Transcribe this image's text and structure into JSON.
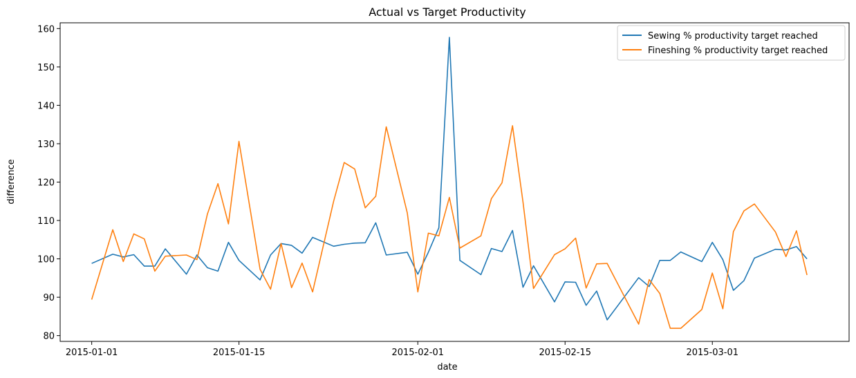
{
  "chart_data": {
    "type": "line",
    "title": "Actual vs Target Productivity",
    "xlabel": "date",
    "ylabel": "difference",
    "x_tick_labels": [
      "2015-01-01",
      "2015-01-15",
      "2015-02-01",
      "2015-02-15",
      "2015-03-01"
    ],
    "x_ticks": [
      "2015-01-01",
      "2015-01-15",
      "2015-02-01",
      "2015-02-15",
      "2015-03-01"
    ],
    "y_ticks": [
      80,
      90,
      100,
      110,
      120,
      130,
      140,
      150,
      160
    ],
    "xlim": [
      "2014-12-29",
      "2015-03-14"
    ],
    "ylim": [
      78.5,
      161.5
    ],
    "grid": false,
    "legend_position": "top-right",
    "x": [
      "2015-01-01",
      "2015-01-03",
      "2015-01-04",
      "2015-01-05",
      "2015-01-06",
      "2015-01-07",
      "2015-01-08",
      "2015-01-10",
      "2015-01-11",
      "2015-01-12",
      "2015-01-13",
      "2015-01-14",
      "2015-01-15",
      "2015-01-17",
      "2015-01-18",
      "2015-01-19",
      "2015-01-20",
      "2015-01-21",
      "2015-01-22",
      "2015-01-24",
      "2015-01-25",
      "2015-01-26",
      "2015-01-27",
      "2015-01-28",
      "2015-01-29",
      "2015-01-31",
      "2015-02-01",
      "2015-02-02",
      "2015-02-03",
      "2015-02-04",
      "2015-02-05",
      "2015-02-07",
      "2015-02-08",
      "2015-02-09",
      "2015-02-10",
      "2015-02-11",
      "2015-02-12",
      "2015-02-14",
      "2015-02-15",
      "2015-02-16",
      "2015-02-17",
      "2015-02-18",
      "2015-02-19",
      "2015-02-22",
      "2015-02-23",
      "2015-02-24",
      "2015-02-25",
      "2015-02-26",
      "2015-02-28",
      "2015-03-01",
      "2015-03-02",
      "2015-03-03",
      "2015-03-04",
      "2015-03-05",
      "2015-03-07",
      "2015-03-08",
      "2015-03-09",
      "2015-03-10",
      "2015-03-11"
    ],
    "series": [
      {
        "name": "Sewing % productivity target reached",
        "color": "#1f77b4",
        "values": [
          98.8,
          101.2,
          100.5,
          101.1,
          98.1,
          98.1,
          102.6,
          96.0,
          101.0,
          97.7,
          96.8,
          104.3,
          99.6,
          94.5,
          101.0,
          104.0,
          103.5,
          101.5,
          105.6,
          103.3,
          103.8,
          104.1,
          104.2,
          109.4,
          101.0,
          101.7,
          96.0,
          101.7,
          108.1,
          157.7,
          99.6,
          95.9,
          102.7,
          101.9,
          107.4,
          92.6,
          98.2,
          88.8,
          94.0,
          93.9,
          87.9,
          91.6,
          84.1,
          95.1,
          92.8,
          99.6,
          99.6,
          101.8,
          99.3,
          104.3,
          99.8,
          91.8,
          94.3,
          100.2,
          102.5,
          102.3,
          103.2,
          100.0,
          null
        ]
      },
      {
        "name": "Fineshing % productivity target reached",
        "color": "#ff7f0e",
        "values": [
          89.4,
          107.6,
          99.3,
          106.5,
          105.2,
          96.8,
          100.7,
          101.0,
          99.8,
          111.7,
          119.6,
          109.1,
          130.6,
          97.3,
          92.1,
          104.0,
          92.5,
          98.9,
          91.4,
          115.0,
          125.1,
          123.4,
          113.3,
          116.3,
          134.4,
          112.0,
          91.4,
          106.7,
          106.0,
          116.0,
          102.8,
          106.0,
          115.7,
          119.8,
          134.7,
          114.8,
          92.3,
          101.1,
          102.6,
          105.4,
          92.4,
          98.7,
          98.8,
          83.0,
          94.6,
          91.0,
          81.9,
          81.9,
          86.8,
          96.3,
          87.0,
          107.1,
          112.5,
          114.3,
          107.0,
          100.6,
          107.3,
          95.8,
          null
        ]
      }
    ]
  }
}
